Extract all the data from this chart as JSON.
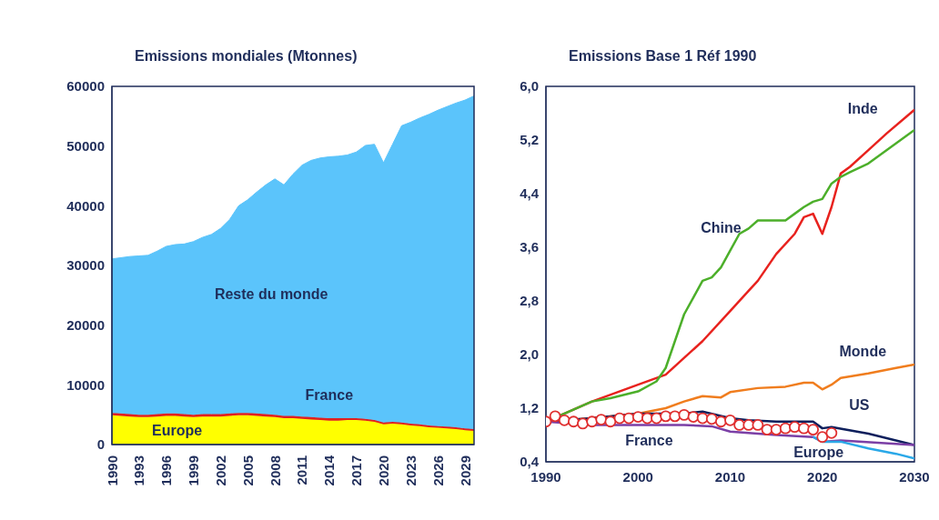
{
  "chart_data": [
    {
      "type": "area",
      "title": "Emissions mondiales (Mtonnes)",
      "stacked": true,
      "x": [
        1990,
        1991,
        1992,
        1993,
        1994,
        1995,
        1996,
        1997,
        1998,
        1999,
        2000,
        2001,
        2002,
        2003,
        2004,
        2005,
        2006,
        2007,
        2008,
        2009,
        2010,
        2011,
        2012,
        2013,
        2014,
        2015,
        2016,
        2017,
        2018,
        2019,
        2020,
        2021,
        2022,
        2023,
        2024,
        2025,
        2026,
        2027,
        2028,
        2029,
        2030
      ],
      "xlim": [
        1990,
        2030
      ],
      "xticks": [
        1990,
        1993,
        1996,
        1999,
        2002,
        2005,
        2008,
        2011,
        2014,
        2017,
        2020,
        2023,
        2026,
        2029
      ],
      "ylim": [
        0,
        60000
      ],
      "yticks": [
        0,
        10000,
        20000,
        30000,
        40000,
        50000,
        60000
      ],
      "series": [
        {
          "name": "Europe",
          "color": "#ffff00",
          "values": [
            4900,
            4800,
            4700,
            4600,
            4600,
            4700,
            4800,
            4800,
            4700,
            4600,
            4700,
            4700,
            4700,
            4800,
            4900,
            4900,
            4800,
            4700,
            4600,
            4400,
            4400,
            4300,
            4200,
            4100,
            4000,
            4000,
            4100,
            4100,
            4000,
            3800,
            3400,
            3500,
            3400,
            3200,
            3100,
            2900,
            2800,
            2700,
            2600,
            2400,
            2300
          ]
        },
        {
          "name": "France",
          "color": "#e02020",
          "values": [
            400,
            400,
            400,
            400,
            400,
            400,
            400,
            400,
            400,
            400,
            400,
            400,
            400,
            400,
            400,
            400,
            400,
            400,
            400,
            400,
            400,
            400,
            400,
            400,
            400,
            400,
            300,
            300,
            300,
            300,
            300,
            300,
            300,
            300,
            300,
            300,
            300,
            300,
            300,
            300,
            300
          ]
        },
        {
          "name": "Reste du monde",
          "color": "#5bc4fb",
          "values": [
            25800,
            26100,
            26400,
            26600,
            26700,
            27300,
            28000,
            28300,
            28500,
            29000,
            29600,
            30100,
            31100,
            32500,
            34700,
            35700,
            37100,
            38400,
            39500,
            38700,
            40500,
            42100,
            43000,
            43500,
            43800,
            43900,
            44100,
            44600,
            45800,
            46200,
            43500,
            46500,
            49700,
            50500,
            51300,
            52100,
            52900,
            53600,
            54300,
            55000,
            55800
          ]
        }
      ]
    },
    {
      "type": "line",
      "title": "Emissions Base 1 Réf 1990",
      "xlim": [
        1990,
        2030
      ],
      "xticks": [
        1990,
        2000,
        2010,
        2020,
        2030
      ],
      "ylim": [
        0.4,
        6.0
      ],
      "yticks": [
        {
          "value": 0.4,
          "label": "0,4"
        },
        {
          "value": 1.2,
          "label": "1,2"
        },
        {
          "value": 2.0,
          "label": "2,0"
        },
        {
          "value": 2.8,
          "label": "2,8"
        },
        {
          "value": 3.6,
          "label": "3,6"
        },
        {
          "value": 4.4,
          "label": "4,4"
        },
        {
          "value": 5.2,
          "label": "5,2"
        },
        {
          "value": 6.0,
          "label": "6,0"
        }
      ],
      "series": [
        {
          "name": "Inde",
          "color": "#e8221e",
          "x": [
            1990,
            1995,
            2000,
            2003,
            2005,
            2007,
            2010,
            2012,
            2013,
            2015,
            2017,
            2018,
            2019,
            2020,
            2021,
            2022,
            2023,
            2025,
            2027,
            2030
          ],
          "values": [
            1.0,
            1.3,
            1.55,
            1.7,
            1.95,
            2.2,
            2.65,
            2.95,
            3.1,
            3.5,
            3.8,
            4.05,
            4.1,
            3.8,
            4.2,
            4.7,
            4.8,
            5.05,
            5.3,
            5.65
          ]
        },
        {
          "name": "Chine",
          "color": "#4caf2a",
          "x": [
            1990,
            1995,
            1997,
            2000,
            2002,
            2003,
            2004,
            2005,
            2006,
            2007,
            2008,
            2009,
            2010,
            2011,
            2012,
            2013,
            2016,
            2017,
            2018,
            2019,
            2020,
            2021,
            2022,
            2023,
            2025,
            2030
          ],
          "values": [
            1.0,
            1.3,
            1.35,
            1.45,
            1.6,
            1.8,
            2.2,
            2.6,
            2.85,
            3.1,
            3.15,
            3.3,
            3.55,
            3.8,
            3.88,
            4.0,
            4.0,
            4.1,
            4.2,
            4.28,
            4.32,
            4.55,
            4.65,
            4.72,
            4.85,
            5.35
          ]
        },
        {
          "name": "Monde",
          "color": "#f07d1e",
          "x": [
            1990,
            1995,
            2000,
            2003,
            2005,
            2007,
            2009,
            2010,
            2013,
            2016,
            2018,
            2019,
            2020,
            2021,
            2022,
            2025,
            2028,
            2030
          ],
          "values": [
            1.0,
            1.05,
            1.12,
            1.2,
            1.3,
            1.38,
            1.36,
            1.44,
            1.5,
            1.52,
            1.58,
            1.58,
            1.48,
            1.55,
            1.65,
            1.72,
            1.8,
            1.85
          ]
        },
        {
          "name": "US",
          "color": "#0d1f5c",
          "x": [
            1990,
            1995,
            2000,
            2005,
            2007,
            2010,
            2012,
            2015,
            2019,
            2020,
            2021,
            2025,
            2030
          ],
          "values": [
            1.0,
            1.05,
            1.12,
            1.12,
            1.15,
            1.05,
            1.02,
            1.0,
            1.0,
            0.9,
            0.92,
            0.82,
            0.65
          ]
        },
        {
          "name": "Europe",
          "color": "#7b3fa6",
          "x": [
            1990,
            1995,
            2000,
            2005,
            2008,
            2010,
            2015,
            2019,
            2020,
            2022,
            2030
          ],
          "values": [
            1.0,
            0.95,
            0.95,
            0.95,
            0.93,
            0.85,
            0.8,
            0.77,
            0.7,
            0.72,
            0.65
          ]
        },
        {
          "color": "#2aa8e8",
          "x": [
            2019,
            2020,
            2022,
            2025,
            2028,
            2030
          ],
          "values": [
            0.77,
            0.7,
            0.7,
            0.6,
            0.52,
            0.45
          ]
        },
        {
          "name": "France",
          "type": "scatter",
          "marker": "circle",
          "color": "#e03030",
          "x": [
            1990,
            1991,
            1992,
            1993,
            1994,
            1995,
            1996,
            1997,
            1998,
            1999,
            2000,
            2001,
            2002,
            2003,
            2004,
            2005,
            2006,
            2007,
            2008,
            2009,
            2010,
            2011,
            2012,
            2013,
            2014,
            2015,
            2016,
            2017,
            2018,
            2019,
            2020,
            2021
          ],
          "values": [
            1.0,
            1.08,
            1.02,
            1.0,
            0.97,
            1.0,
            1.03,
            1.0,
            1.05,
            1.05,
            1.07,
            1.05,
            1.05,
            1.08,
            1.08,
            1.1,
            1.07,
            1.05,
            1.04,
            1.0,
            1.02,
            0.95,
            0.95,
            0.95,
            0.88,
            0.88,
            0.9,
            0.92,
            0.9,
            0.88,
            0.77,
            0.83
          ]
        }
      ]
    }
  ]
}
